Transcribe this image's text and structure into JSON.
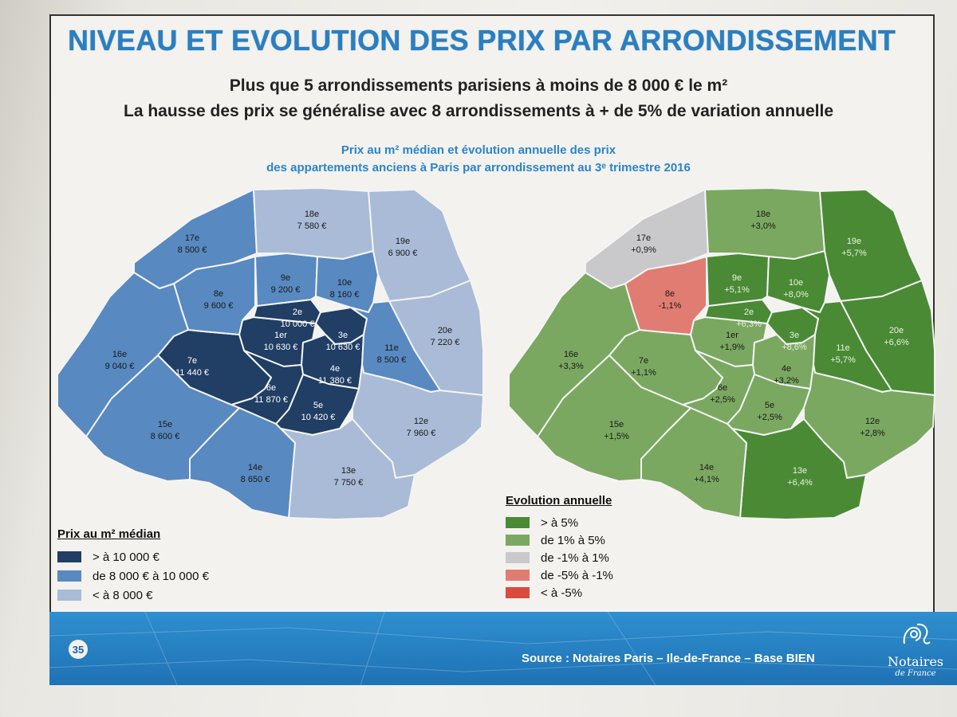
{
  "title": "NIVEAU ET EVOLUTION DES PRIX PAR ARRONDISSEMENT",
  "subtitle1": "Plus que 5 arrondissements parisiens à moins de 8 000 € le m²",
  "subtitle2": "La hausse des prix se généralise avec 8 arrondissements à + de 5% de variation annuelle",
  "map_title1": "Prix au m² médian et évolution annuelle des prix",
  "map_title2": "des appartements anciens à Paris par arrondissement au 3ᵉ trimestre 2016",
  "colors": {
    "price_high": "#213e64",
    "price_mid": "#5889c0",
    "price_low": "#a9bbd6",
    "evo_high": "#4a8a35",
    "evo_mid": "#7aa860",
    "evo_flat": "#c9c9cb",
    "evo_neg": "#e07c72",
    "evo_veryneg": "#d94b3f",
    "title": "#2a7fc1",
    "footer": "#2a85c6"
  },
  "districts": [
    {
      "name": "1er",
      "price": "10 630 €",
      "evolution": "+1,9%"
    },
    {
      "name": "2e",
      "price": "10 000 €",
      "evolution": "+6,3%"
    },
    {
      "name": "3e",
      "price": "10 630 €",
      "evolution": "+8,6%"
    },
    {
      "name": "4e",
      "price": "11 380 €",
      "evolution": "+3,2%"
    },
    {
      "name": "5e",
      "price": "10 420 €",
      "evolution": "+2,5%"
    },
    {
      "name": "6e",
      "price": "11 870 €",
      "evolution": "+2,5%"
    },
    {
      "name": "7e",
      "price": "11 440 €",
      "evolution": "+1,1%"
    },
    {
      "name": "8e",
      "price": "9 600 €",
      "evolution": "-1,1%"
    },
    {
      "name": "9e",
      "price": "9 200 €",
      "evolution": "+5,1%"
    },
    {
      "name": "10e",
      "price": "8 160 €",
      "evolution": "+8,0%"
    },
    {
      "name": "11e",
      "price": "8 500 €",
      "evolution": "+5,7%"
    },
    {
      "name": "12e",
      "price": "7 960 €",
      "evolution": "+2,8%"
    },
    {
      "name": "13e",
      "price": "7 750 €",
      "evolution": "+6,4%"
    },
    {
      "name": "14e",
      "price": "8 650 €",
      "evolution": "+4,1%"
    },
    {
      "name": "15e",
      "price": "8 600 €",
      "evolution": "+1,5%"
    },
    {
      "name": "16e",
      "price": "9 040 €",
      "evolution": "+3,3%"
    },
    {
      "name": "17e",
      "price": "8 500 €",
      "evolution": "+0,9%"
    },
    {
      "name": "18e",
      "price": "7 580 €",
      "evolution": "+3,0%"
    },
    {
      "name": "19e",
      "price": "6 900 €",
      "evolution": "+5,7%"
    },
    {
      "name": "20e",
      "price": "7 220 €",
      "evolution": "+6,6%"
    }
  ],
  "legend_price": {
    "title": "Prix au m² médian",
    "items": [
      "> à 10 000 €",
      "de 8 000 € à 10 000 €",
      "< à 8 000 €"
    ]
  },
  "legend_evolution": {
    "title": "Evolution annuelle",
    "items": [
      "> à 5%",
      "de 1% à 5%",
      "de -1% à 1%",
      "de -5% à -1%",
      "< à -5%"
    ]
  },
  "footer": {
    "page_number": "35",
    "source": "Source :  Notaires Paris – Ile-de-France – Base BIEN",
    "logo_name": "Notaires",
    "logo_sub": "de France"
  }
}
